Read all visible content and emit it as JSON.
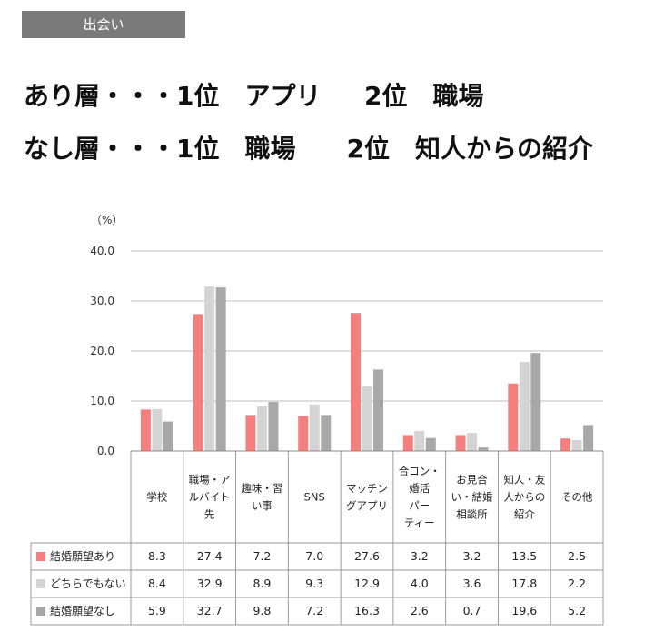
{
  "section_tag": "出会い",
  "headline": {
    "line1": "あり層・・・1位　アプリ　  2位　職場",
    "line2": "なし層・・・1位　職場　　2位　知人からの紹介"
  },
  "chart_data": {
    "type": "bar",
    "unit_label": "（%）",
    "ylim": [
      0,
      40
    ],
    "yticks": [
      "0.0",
      "10.0",
      "20.0",
      "30.0",
      "40.0"
    ],
    "categories": [
      [
        "学校"
      ],
      [
        "職場・ア",
        "ルバイト",
        "先"
      ],
      [
        "趣味・習",
        "い事"
      ],
      [
        "SNS"
      ],
      [
        "マッチン",
        "グアプリ"
      ],
      [
        "合コン・",
        "婚活",
        "パー",
        "ティー"
      ],
      [
        "お見合",
        "い・結婚",
        "相談所"
      ],
      [
        "知人・友",
        "人からの",
        "紹介"
      ],
      [
        "その他"
      ]
    ],
    "series": [
      {
        "name": "結婚願望あり",
        "color": "#f47f7f",
        "values": [
          8.3,
          27.4,
          7.2,
          7.0,
          27.6,
          3.2,
          3.2,
          13.5,
          2.5
        ],
        "labels": [
          "8.3",
          "27.4",
          "7.2",
          "7.0",
          "27.6",
          "3.2",
          "3.2",
          "13.5",
          "2.5"
        ]
      },
      {
        "name": "どちらでもない",
        "color": "#d4d4d4",
        "values": [
          8.4,
          32.9,
          8.9,
          9.3,
          12.9,
          4.0,
          3.6,
          17.8,
          2.2
        ],
        "labels": [
          "8.4",
          "32.9",
          "8.9",
          "9.3",
          "12.9",
          "4.0",
          "3.6",
          "17.8",
          "2.2"
        ]
      },
      {
        "name": "結婚願望なし",
        "color": "#a8a8a8",
        "values": [
          5.9,
          32.7,
          9.8,
          7.2,
          16.3,
          2.6,
          0.7,
          19.6,
          5.2
        ],
        "labels": [
          "5.9",
          "32.7",
          "9.8",
          "7.2",
          "16.3",
          "2.6",
          "0.7",
          "19.6",
          "5.2"
        ]
      }
    ],
    "grid": true,
    "legend": "table-left"
  }
}
